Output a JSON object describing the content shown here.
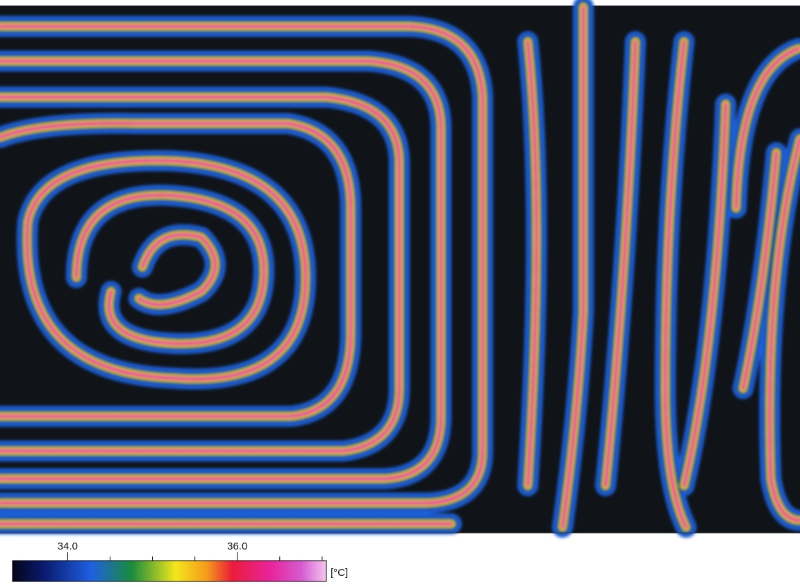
{
  "colorbar": {
    "range": [
      33.35,
      37.05
    ],
    "ticks": [
      {
        "value": 34,
        "label": "34.0"
      },
      {
        "value": 36,
        "label": "36.0"
      }
    ],
    "minor_ticks": [
      34.5,
      35,
      35.5,
      36.5,
      37
    ],
    "unit": "[°C]"
  }
}
